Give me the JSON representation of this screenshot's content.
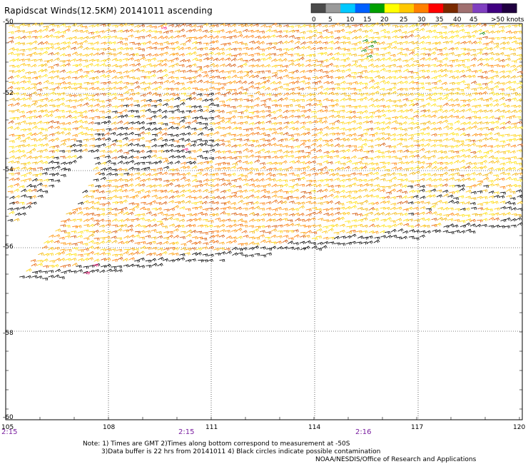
{
  "title": "Rapidscat Winds(12.5KM) 20141011 ascending",
  "legend": {
    "labels": [
      "0",
      "5",
      "10",
      "15",
      "20",
      "25",
      "30",
      "35",
      "40",
      "45",
      ">50 knots"
    ],
    "colors": [
      "#4a4a4a",
      "#9a9a9a",
      "#00c8ff",
      "#0060ff",
      "#00a000",
      "#ffff00",
      "#ffc800",
      "#ff8000",
      "#ff0000",
      "#7a2a00",
      "#a07070",
      "#8040c0",
      "#400080",
      "#200040"
    ]
  },
  "axes": {
    "lat_labels": [
      "-50",
      "-52",
      "-54",
      "-56",
      "-58",
      "-60"
    ],
    "lon_labels": [
      "105",
      "108",
      "111",
      "114",
      "117",
      "120"
    ],
    "times": [
      "2:15",
      "2:15",
      "2:16"
    ]
  },
  "notes": {
    "line1": "Note: 1) Times are GMT 2)Times along bottom correspond to measurement at -50S",
    "line2": "3)Data buffer is 22 hrs from 20141011 4) Black circles indicate possible contamination",
    "credit": "NOAA/NESDIS/Office of Research and Applications"
  }
}
